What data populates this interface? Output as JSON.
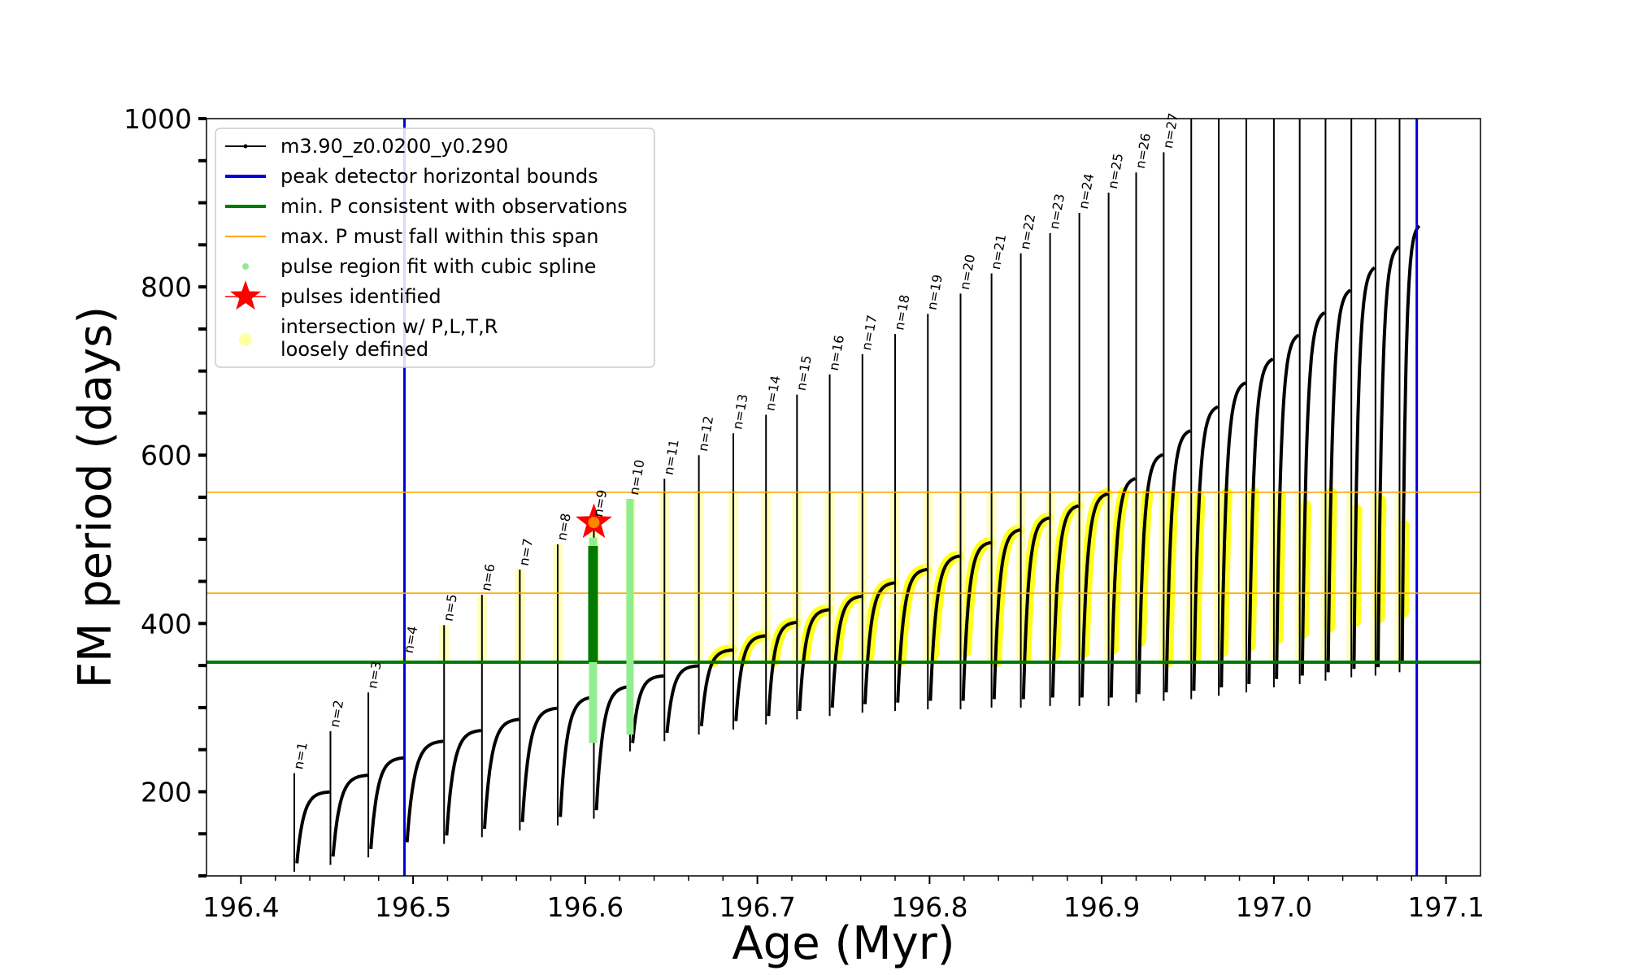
{
  "chart_data": {
    "type": "line",
    "xlabel": "Age (Myr)",
    "ylabel": "FM period (days)",
    "xlim": [
      196.38,
      197.12
    ],
    "ylim": [
      100,
      1000
    ],
    "xticks": [
      196.4,
      196.5,
      196.6,
      196.7,
      196.8,
      196.9,
      197.0,
      197.1
    ],
    "xtick_labels": [
      "196.4",
      "196.5",
      "196.6",
      "196.7",
      "196.8",
      "196.9",
      "197.0",
      "197.1"
    ],
    "yticks": [
      200,
      400,
      600,
      800,
      1000
    ],
    "ytick_labels": [
      "200",
      "400",
      "600",
      "800",
      "1000"
    ],
    "grid": false,
    "legend_position": "upper-left",
    "legend": [
      {
        "label": "m3.90_z0.0200_y0.290",
        "style": "line-marker",
        "color": "#000000"
      },
      {
        "label": "peak detector horizontal bounds",
        "style": "line",
        "color": "#0000dd"
      },
      {
        "label": "min. P consistent with observations",
        "style": "line",
        "color": "#007a00"
      },
      {
        "label": "max. P must fall within this span",
        "style": "thin-line",
        "color": "#ffa500"
      },
      {
        "label": "pulse region fit with cubic spline",
        "style": "dot",
        "color": "#90ee90"
      },
      {
        "label": "pulses identified",
        "style": "star",
        "color": "#ff0000"
      },
      {
        "label": "intersection w/ P,L,T,R",
        "label2": "loosely defined",
        "style": "circle",
        "color": "#ffff99"
      }
    ],
    "series_name": "m3.90_z0.0200_y0.290",
    "vertical_bounds": [
      196.495,
      197.083
    ],
    "min_period": 354,
    "max_period_span": [
      436,
      556
    ],
    "pulses_identified": [
      {
        "x": 196.605,
        "y": 520
      }
    ],
    "pulses": [
      {
        "label": "n=1",
        "age": 196.431,
        "peak": 222,
        "trough": 115
      },
      {
        "label": "n=2",
        "age": 196.452,
        "peak": 272,
        "trough": 123
      },
      {
        "label": "n=3",
        "age": 196.474,
        "peak": 318,
        "trough": 132
      },
      {
        "label": "n=4",
        "age": 196.495,
        "peak": 360,
        "trough": 140
      },
      {
        "label": "n=5",
        "age": 196.518,
        "peak": 398,
        "trough": 148
      },
      {
        "label": "n=6",
        "age": 196.54,
        "peak": 434,
        "trough": 156
      },
      {
        "label": "n=7",
        "age": 196.562,
        "peak": 464,
        "trough": 164
      },
      {
        "label": "n=8",
        "age": 196.584,
        "peak": 494,
        "trough": 170
      },
      {
        "label": "n=9",
        "age": 196.605,
        "peak": 522,
        "trough": 178
      },
      {
        "label": "n=10",
        "age": 196.626,
        "peak": 548,
        "trough": 258
      },
      {
        "label": "n=11",
        "age": 196.646,
        "peak": 572,
        "trough": 270
      },
      {
        "label": "n=12",
        "age": 196.666,
        "peak": 600,
        "trough": 278
      },
      {
        "label": "n=13",
        "age": 196.686,
        "peak": 626,
        "trough": 284
      },
      {
        "label": "n=14",
        "age": 196.705,
        "peak": 648,
        "trough": 290
      },
      {
        "label": "n=15",
        "age": 196.723,
        "peak": 672,
        "trough": 296
      },
      {
        "label": "n=16",
        "age": 196.742,
        "peak": 696,
        "trough": 300
      },
      {
        "label": "n=17",
        "age": 196.761,
        "peak": 720,
        "trough": 304
      },
      {
        "label": "n=18",
        "age": 196.78,
        "peak": 744,
        "trough": 306
      },
      {
        "label": "n=19",
        "age": 196.799,
        "peak": 768,
        "trough": 308
      },
      {
        "label": "n=20",
        "age": 196.818,
        "peak": 792,
        "trough": 308
      },
      {
        "label": "n=21",
        "age": 196.836,
        "peak": 816,
        "trough": 310
      },
      {
        "label": "n=22",
        "age": 196.853,
        "peak": 840,
        "trough": 310
      },
      {
        "label": "n=23",
        "age": 196.87,
        "peak": 864,
        "trough": 312
      },
      {
        "label": "n=24",
        "age": 196.887,
        "peak": 888,
        "trough": 312
      },
      {
        "label": "n=25",
        "age": 196.904,
        "peak": 912,
        "trough": 312
      },
      {
        "label": "n=26",
        "age": 196.92,
        "peak": 936,
        "trough": 316
      },
      {
        "label": "n=27",
        "age": 196.936,
        "peak": 960,
        "trough": 318
      },
      {
        "label": "",
        "age": 196.952,
        "peak": 1000,
        "trough": 320
      },
      {
        "label": "",
        "age": 196.968,
        "peak": 1000,
        "trough": 324
      },
      {
        "label": "",
        "age": 196.984,
        "peak": 1000,
        "trough": 328
      },
      {
        "label": "",
        "age": 197.0,
        "peak": 1000,
        "trough": 334
      },
      {
        "label": "",
        "age": 197.015,
        "peak": 1000,
        "trough": 338
      },
      {
        "label": "",
        "age": 197.03,
        "peak": 1000,
        "trough": 342
      },
      {
        "label": "",
        "age": 197.045,
        "peak": 1000,
        "trough": 346
      },
      {
        "label": "",
        "age": 197.059,
        "peak": 1000,
        "trough": 348
      },
      {
        "label": "",
        "age": 197.073,
        "peak": 1000,
        "trough": 352
      }
    ]
  }
}
